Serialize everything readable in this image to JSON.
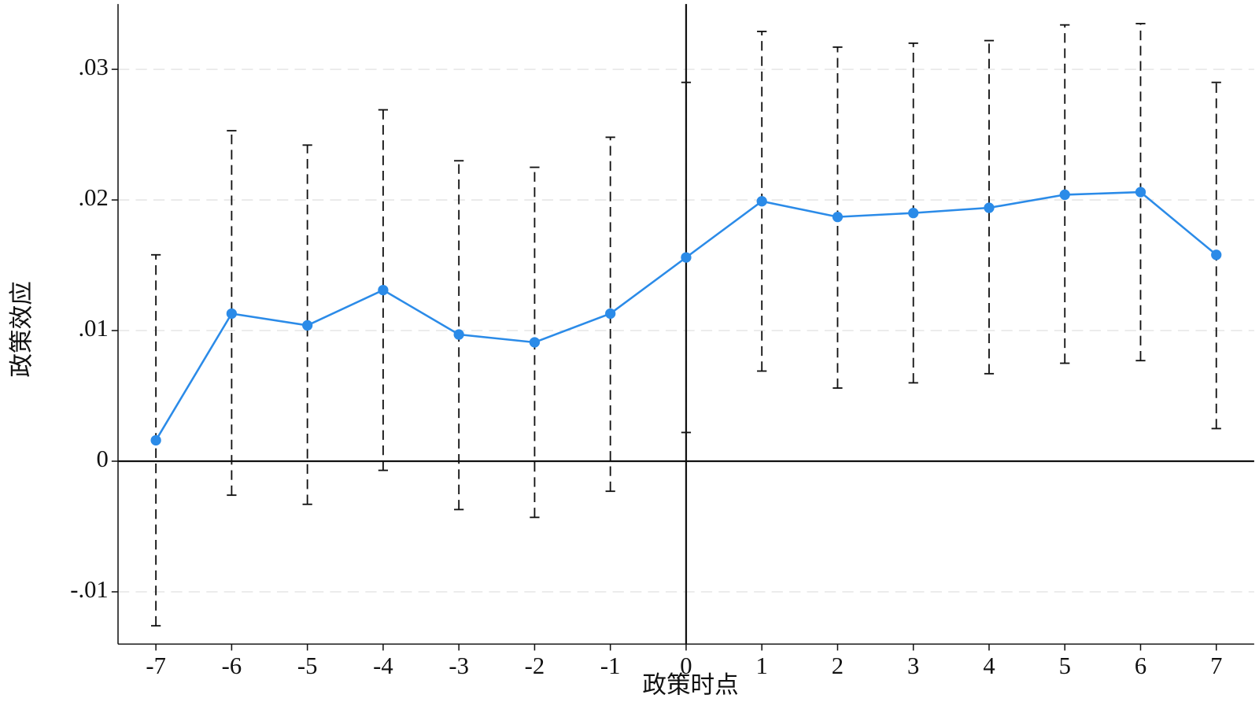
{
  "chart_data": {
    "type": "line",
    "xlabel": "政策时点",
    "ylabel": "政策效应",
    "x": [
      -7,
      -6,
      -5,
      -4,
      -3,
      -2,
      -1,
      0,
      1,
      2,
      3,
      4,
      5,
      6,
      7
    ],
    "series": [
      {
        "color": "#2b8be8",
        "values": [
          0.0016,
          0.0113,
          0.0104,
          0.0131,
          0.0097,
          0.0091,
          0.0113,
          0.0156,
          0.0199,
          0.0187,
          0.019,
          0.0194,
          0.0204,
          0.0206,
          0.0158
        ],
        "upper": [
          0.0158,
          0.0253,
          0.0242,
          0.0269,
          0.023,
          0.0225,
          0.0248,
          0.029,
          0.0329,
          0.0317,
          0.032,
          0.0322,
          0.0334,
          0.0335,
          0.029
        ],
        "lower": [
          -0.0126,
          -0.0026,
          -0.0033,
          -0.0007,
          -0.0037,
          -0.0043,
          -0.0023,
          0.0022,
          0.0069,
          0.0056,
          0.006,
          0.0067,
          0.0075,
          0.0077,
          0.0025
        ]
      }
    ],
    "xlim": [
      -7.5,
      7.5
    ],
    "ylim": [
      -0.014,
      0.035
    ],
    "xticks": [
      -7,
      -6,
      -5,
      -4,
      -3,
      -2,
      -1,
      0,
      1,
      2,
      3,
      4,
      5,
      6,
      7
    ],
    "yticks": [
      {
        "value": -0.01,
        "label": "-.01"
      },
      0,
      {
        "value": 0.01,
        "label": ".01"
      },
      {
        "value": 0.02,
        "label": ".02"
      },
      {
        "value": 0.03,
        "label": ".03"
      }
    ],
    "grid": true,
    "hline": 0,
    "vline": 0
  }
}
